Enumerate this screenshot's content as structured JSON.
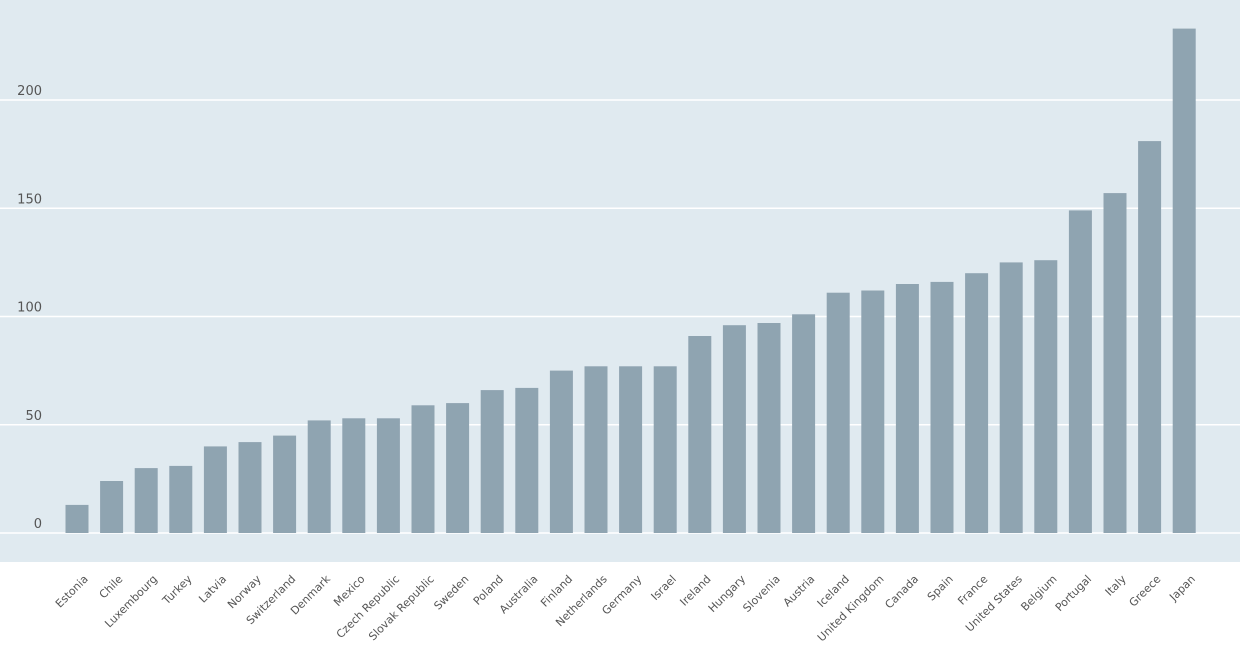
{
  "colors": {
    "plot_background": "#e0eaf0",
    "bar": "#8fa4b1",
    "gridline": "#ffffff",
    "text": "#555555"
  },
  "chart_data": {
    "type": "bar",
    "title": "",
    "xlabel": "",
    "ylabel": "",
    "ylim": [
      -13,
      245
    ],
    "yticks": [
      0,
      50,
      100,
      150,
      200
    ],
    "grid": true,
    "categories": [
      "Estonia",
      "Chile",
      "Luxembourg",
      "Turkey",
      "Latvia",
      "Norway",
      "Switzerland",
      "Denmark",
      "Mexico",
      "Czech Republic",
      "Slovak Republic",
      "Sweden",
      "Poland",
      "Australia",
      "Finland",
      "Netherlands",
      "Germany",
      "Israel",
      "Ireland",
      "Hungary",
      "Slovenia",
      "Austria",
      "Iceland",
      "United Kingdom",
      "Canada",
      "Spain",
      "France",
      "United States",
      "Belgium",
      "Portugal",
      "Italy",
      "Greece",
      "Japan"
    ],
    "values": [
      13,
      24,
      30,
      31,
      40,
      42,
      45,
      52,
      53,
      53,
      59,
      60,
      66,
      67,
      75,
      77,
      77,
      77,
      91,
      96,
      97,
      101,
      111,
      112,
      115,
      116,
      120,
      125,
      126,
      149,
      157,
      181,
      233
    ]
  }
}
